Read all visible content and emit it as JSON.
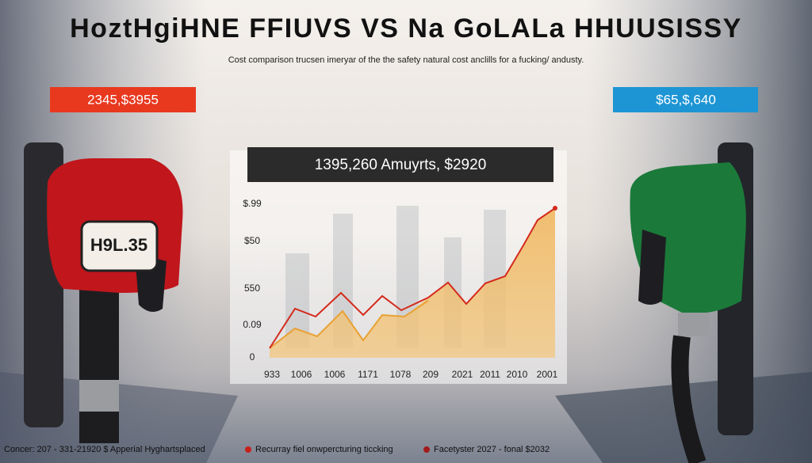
{
  "header": {
    "title": "HoztHgiHNE FFIUVS VS Na GoLALa HHUUSISSY",
    "subtitle": "Cost comparison trucsen imeryar of the the safety natural cost anclills for a fucking/ andusty."
  },
  "badges": {
    "left": "2345,$3955",
    "right": "$65,$,640"
  },
  "pump_label": "H9L.35",
  "panel": {
    "title": "1395,260 Amuyrts, $2920",
    "y_labels": [
      "$.99",
      "$50",
      "550",
      "0.09",
      "0"
    ],
    "x_labels": [
      "933",
      "1006",
      "1006",
      "1171",
      "1078",
      "209",
      "2021",
      "2011",
      "2010",
      "2001"
    ]
  },
  "footer": {
    "source": "Concer: 207 - 331-21920 $ Apperial Hyghartsplaced",
    "legend": [
      "Recurray fiel onwpercturing ticcking",
      "Facetyster 2027 - fonal $2032"
    ]
  }
}
